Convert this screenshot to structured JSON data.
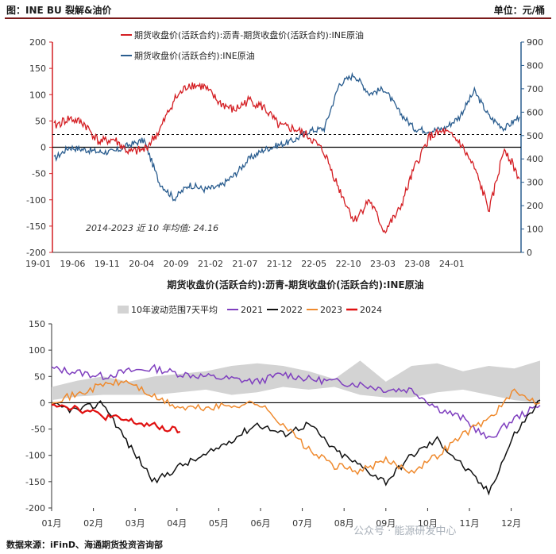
{
  "header": {
    "title": "图：INE BU 裂解&油价",
    "unit": "单位：元/桶"
  },
  "footer": {
    "source": "数据来源：iFinD、海通期货投资咨询部"
  },
  "watermark": "公众号 · 能源研发中心",
  "colors": {
    "red": "#d41e23",
    "blue": "#2a5d8f",
    "purple": "#7f3fbf",
    "black": "#111111",
    "orange": "#ef8a2e",
    "band": "#d3d3d3"
  },
  "chart_data": [
    {
      "type": "line",
      "title": "",
      "legend": [
        "期货收盘价(活跃合约):沥青-期货收盘价(活跃合约):INE原油",
        "期货收盘价(活跃合约):INE原油"
      ],
      "x_tick_labels": [
        "19-01",
        "19-06",
        "19-11",
        "20-04",
        "20-09",
        "21-02",
        "21-07",
        "21-12",
        "22-05",
        "22-10",
        "23-03",
        "23-08",
        "24-01"
      ],
      "left_axis": {
        "range": [
          -200,
          200
        ],
        "ticks": [
          -200,
          -150,
          -100,
          -50,
          0,
          50,
          100,
          150,
          200
        ]
      },
      "right_axis": {
        "range": [
          0,
          900
        ],
        "ticks": [
          0,
          100,
          200,
          300,
          400,
          500,
          600,
          700,
          800,
          900
        ]
      },
      "avg_line": {
        "value": 24.16,
        "label": "2014-2023 近 10 年均值: 24.16"
      },
      "months": [
        "2019-01",
        "2019-03",
        "2019-05",
        "2019-07",
        "2019-09",
        "2019-11",
        "2020-01",
        "2020-03",
        "2020-05",
        "2020-07",
        "2020-09",
        "2020-11",
        "2021-01",
        "2021-03",
        "2021-05",
        "2021-07",
        "2021-09",
        "2021-11",
        "2022-01",
        "2022-03",
        "2022-05",
        "2022-07",
        "2022-09",
        "2022-11",
        "2023-01",
        "2023-03",
        "2023-05",
        "2023-07",
        "2023-09",
        "2023-11",
        "2024-01",
        "2024-03"
      ],
      "series": [
        {
          "name": "期货收盘价(活跃合约):沥青-期货收盘价(活跃合约):INE原油",
          "axis": "left",
          "values": [
            40,
            55,
            45,
            10,
            15,
            -10,
            -5,
            30,
            90,
            120,
            115,
            85,
            70,
            90,
            75,
            40,
            35,
            20,
            -10,
            -80,
            -140,
            -100,
            -160,
            -120,
            -40,
            20,
            30,
            10,
            -40,
            -120,
            0,
            -60
          ]
        },
        {
          "name": "期货收盘价(活跃合约):INE原油",
          "axis": "right",
          "values": [
            400,
            450,
            440,
            430,
            430,
            460,
            480,
            300,
            230,
            290,
            270,
            280,
            330,
            400,
            440,
            460,
            480,
            520,
            530,
            720,
            760,
            680,
            700,
            600,
            530,
            520,
            530,
            580,
            690,
            580,
            530,
            580
          ]
        }
      ]
    },
    {
      "type": "line",
      "title": "期货收盘价(活跃合约):沥青-期货收盘价(活跃合约):INE原油",
      "legend": [
        "10年波动范围7天平均",
        "2021",
        "2022",
        "2023",
        "2024"
      ],
      "x_tick_labels": [
        "01月",
        "02月",
        "03月",
        "04月",
        "05月",
        "06月",
        "07月",
        "08月",
        "09月",
        "10月",
        "11月",
        "12月"
      ],
      "y_axis": {
        "range": [
          -200,
          150
        ],
        "ticks": [
          -200,
          -150,
          -100,
          -50,
          0,
          50,
          100,
          150
        ]
      },
      "band": {
        "name": "10年波动范围7天平均",
        "upper": [
          30,
          42,
          50,
          40,
          50,
          55,
          60,
          70,
          75,
          70,
          60,
          45,
          80,
          40,
          70,
          75,
          60,
          70,
          65,
          80
        ],
        "lower": [
          5,
          12,
          15,
          15,
          15,
          20,
          25,
          15,
          20,
          30,
          25,
          30,
          15,
          10,
          10,
          20,
          25,
          15,
          5,
          0
        ]
      },
      "series": [
        {
          "name": "2021",
          "values": [
            65,
            58,
            50,
            60,
            65,
            55,
            50,
            45,
            40,
            55,
            45,
            40,
            35,
            25,
            25,
            -10,
            -30,
            -70,
            -30,
            -5
          ]
        },
        {
          "name": "2022",
          "values": [
            -5,
            -15,
            0,
            -80,
            -150,
            -120,
            -100,
            -70,
            -40,
            -60,
            -40,
            -90,
            -120,
            -150,
            -100,
            -70,
            -120,
            -170,
            -60,
            5
          ]
        },
        {
          "name": "2023",
          "values": [
            5,
            15,
            35,
            40,
            10,
            -10,
            -10,
            -5,
            0,
            -40,
            -90,
            -120,
            -130,
            -110,
            -130,
            -100,
            -60,
            -30,
            20,
            0
          ]
        },
        {
          "name": "2024",
          "values": [
            0,
            -10,
            -25,
            -35,
            -45,
            -55
          ]
        }
      ]
    }
  ]
}
